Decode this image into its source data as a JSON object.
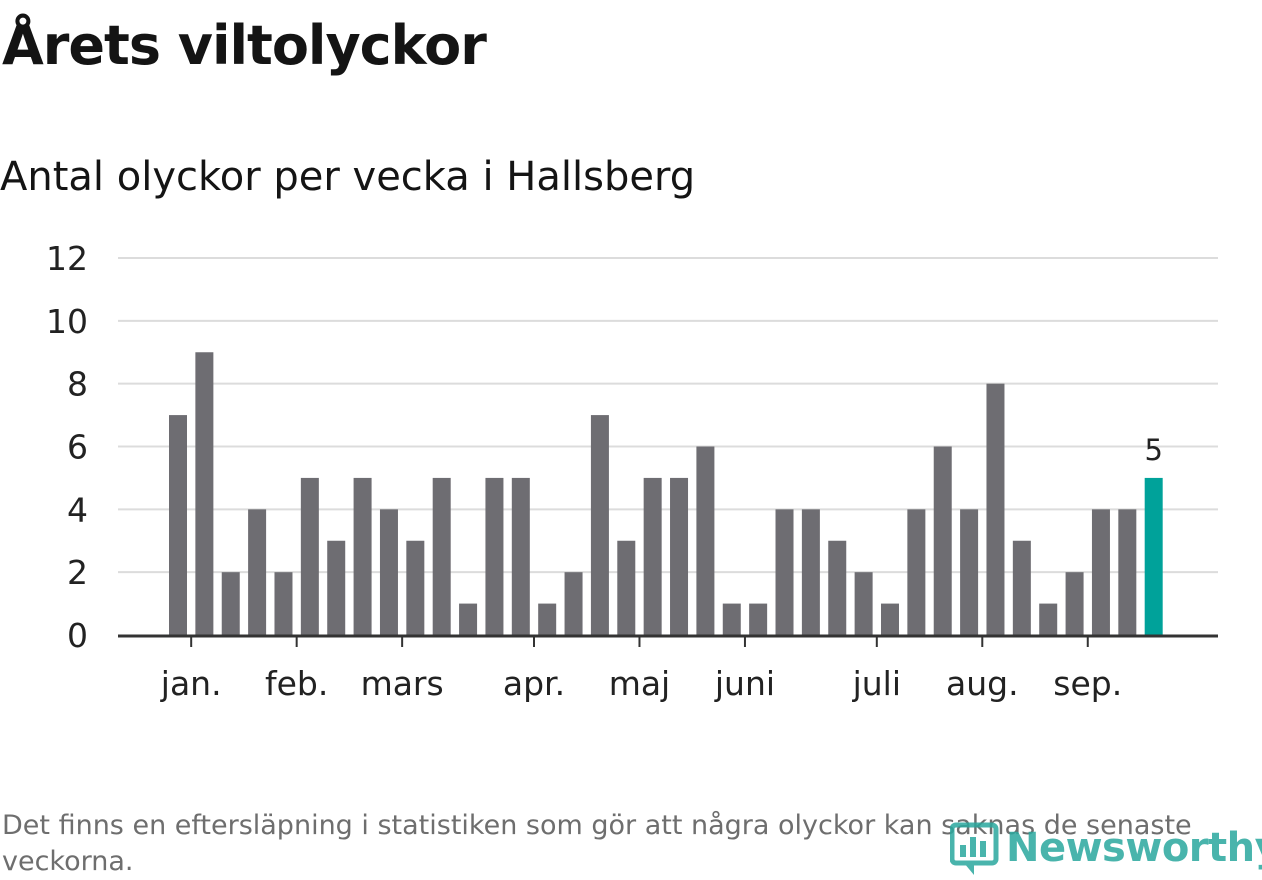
{
  "title": "Årets viltolyckor",
  "subtitle": "Antal olyckor per vecka i Hallsberg",
  "footnote": "Det finns en eftersläpning i statistiken som gör att några olyckor kan saknas de senaste veckorna.",
  "logo": {
    "text": "Newsworthy",
    "icon": "bar-chart-logo-icon"
  },
  "colors": {
    "bar": "#6e6d72",
    "highlight": "#00a29a",
    "grid": "#dcdcdc",
    "axis": "#333333",
    "text": "#222222"
  },
  "chart_data": {
    "type": "bar",
    "title": "Antal olyckor per vecka i Hallsberg",
    "xlabel": "",
    "ylabel": "",
    "ylim": [
      0,
      12
    ],
    "yticks": [
      0,
      2,
      4,
      6,
      8,
      10,
      12
    ],
    "grid": true,
    "weeks": [
      1,
      2,
      3,
      4,
      5,
      6,
      7,
      8,
      9,
      10,
      11,
      12,
      13,
      14,
      15,
      16,
      17,
      18,
      19,
      20,
      21,
      22,
      23,
      24,
      25,
      26,
      27,
      28,
      29,
      30,
      31,
      32,
      33,
      34,
      35,
      36,
      37,
      38
    ],
    "values": [
      7,
      9,
      2,
      4,
      2,
      5,
      3,
      5,
      4,
      3,
      5,
      1,
      5,
      5,
      1,
      2,
      7,
      3,
      5,
      5,
      6,
      1,
      1,
      4,
      4,
      3,
      2,
      1,
      4,
      6,
      4,
      8,
      3,
      1,
      2,
      4,
      4,
      5
    ],
    "month_labels": [
      {
        "label": "jan.",
        "week": 1.5
      },
      {
        "label": "feb.",
        "week": 5.5
      },
      {
        "label": "mars",
        "week": 9.5
      },
      {
        "label": "apr.",
        "week": 14.5
      },
      {
        "label": "maj",
        "week": 18.5
      },
      {
        "label": "juni",
        "week": 22.5
      },
      {
        "label": "juli",
        "week": 27.5
      },
      {
        "label": "aug.",
        "week": 31.5
      },
      {
        "label": "sep.",
        "week": 35.5
      }
    ],
    "highlight_index": 37,
    "highlight_label": "5"
  }
}
